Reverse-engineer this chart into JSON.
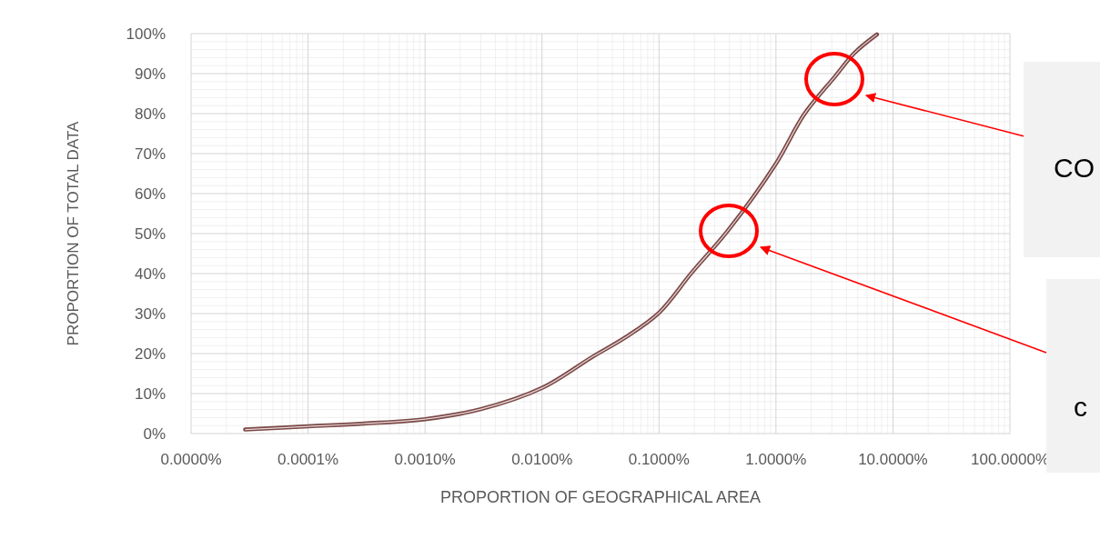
{
  "chart_data": {
    "type": "line",
    "xlabel": "PROPORTION OF GEOGRAPHICAL AREA",
    "ylabel": "PROPORTION OF TOTAL DATA",
    "log": "x",
    "grid": true,
    "xlim": [
      1e-05,
      100
    ],
    "ylim": [
      0,
      100
    ],
    "xticks": [
      {
        "value": 1e-05,
        "label": "0.0000%"
      },
      {
        "value": 0.0001,
        "label": "0.0001%"
      },
      {
        "value": 0.001,
        "label": "0.0010%"
      },
      {
        "value": 0.01,
        "label": "0.0100%"
      },
      {
        "value": 0.1,
        "label": "0.1000%"
      },
      {
        "value": 1,
        "label": "1.0000%"
      },
      {
        "value": 10,
        "label": "10.0000%"
      },
      {
        "value": 100,
        "label": "100.0000%"
      }
    ],
    "yticks": [
      {
        "value": 0,
        "label": "0%"
      },
      {
        "value": 10,
        "label": "10%"
      },
      {
        "value": 20,
        "label": "20%"
      },
      {
        "value": 30,
        "label": "30%"
      },
      {
        "value": 40,
        "label": "40%"
      },
      {
        "value": 50,
        "label": "50%"
      },
      {
        "value": 60,
        "label": "60%"
      },
      {
        "value": 70,
        "label": "70%"
      },
      {
        "value": 80,
        "label": "80%"
      },
      {
        "value": 90,
        "label": "90%"
      },
      {
        "value": 100,
        "label": "100%"
      }
    ],
    "series": [
      {
        "color": "#7b4a48",
        "x": [
          2.9e-05,
          0.0001,
          0.0003,
          0.001,
          0.003,
          0.01,
          0.0274,
          0.052,
          0.1,
          0.19,
          0.387,
          1,
          1.74,
          3.2,
          4.7,
          7.3
        ],
        "values": [
          1,
          1.8,
          2.5,
          3.6,
          6.1,
          11.4,
          19.3,
          24.1,
          30.2,
          40.2,
          50.7,
          67.5,
          79.8,
          89.3,
          95.2,
          99.8
        ]
      }
    ],
    "annotations": [
      "CO",
      "c"
    ]
  }
}
